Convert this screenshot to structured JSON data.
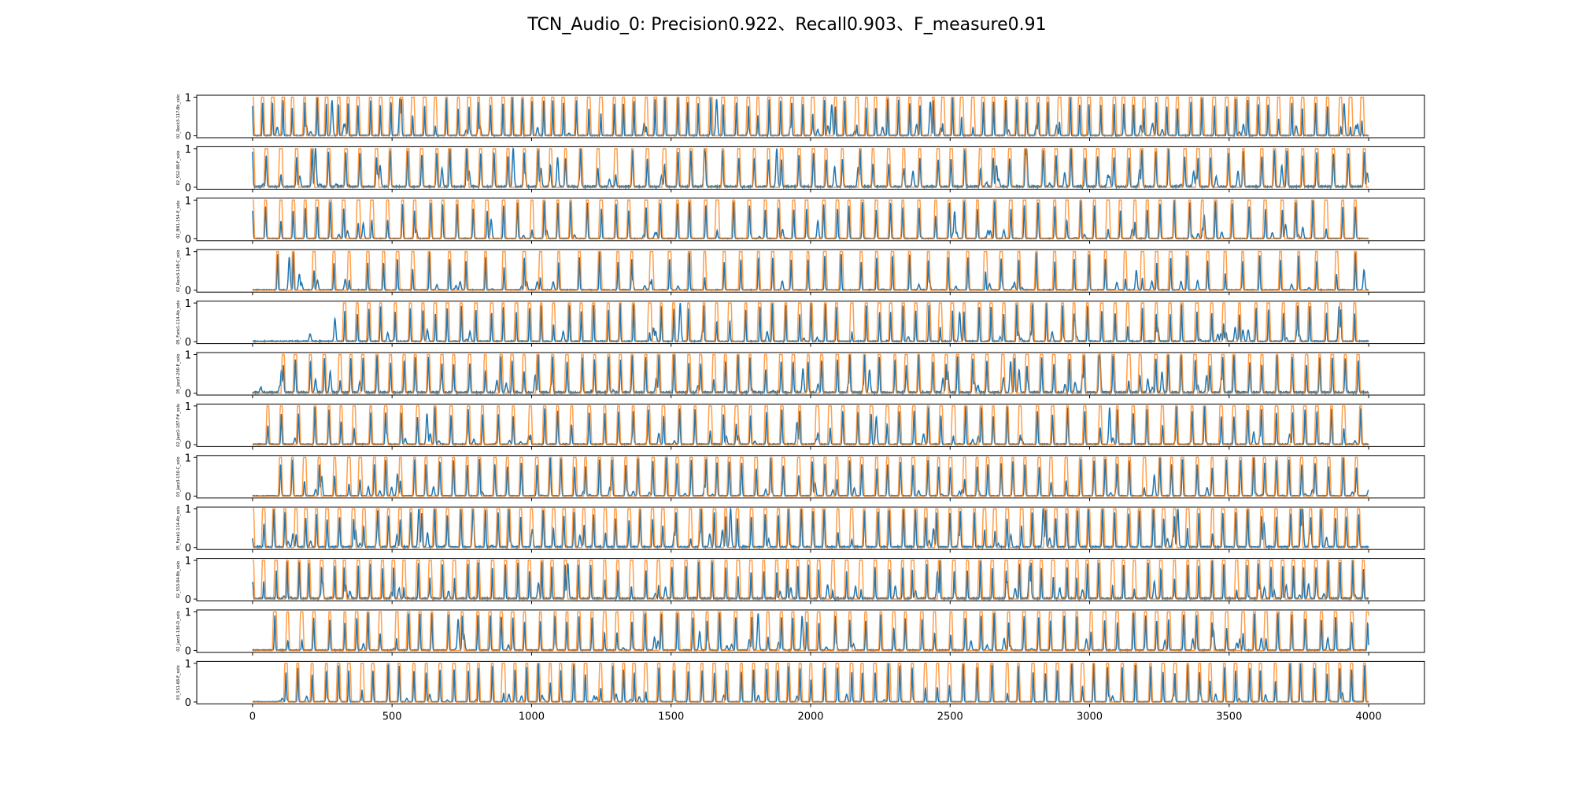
{
  "chart_data": {
    "type": "line",
    "title": "TCN_Audio_0: Precision0.922、Recall0.903、F_measure0.91",
    "x_range": [
      0,
      4000
    ],
    "xlim": [
      -200,
      4200
    ],
    "ylim": [
      -0.05,
      1.05
    ],
    "xticks": [
      0,
      500,
      1000,
      1500,
      2000,
      2500,
      3000,
      3500,
      4000
    ],
    "xtick_labels": [
      "0",
      "500",
      "1000",
      "1500",
      "2000",
      "2500",
      "3000",
      "3500",
      "4000"
    ],
    "yticks": [
      0,
      1
    ],
    "ytick_labels": [
      "0",
      "1"
    ],
    "grid": false,
    "legend": "none",
    "series_colors": {
      "prediction": "#1f77b4",
      "target": "#ff7f0e"
    },
    "panels": [
      {
        "ylabel": "02_Rock3-117-Bb_solo",
        "first_beat": 0,
        "period": 40,
        "spread": 1.6,
        "noise": 0.08,
        "seed": 11
      },
      {
        "ylabel": "02_SS2-88-F_solo",
        "first_beat": 0,
        "period": 55,
        "spread": 2.2,
        "noise": 0.14,
        "seed": 23
      },
      {
        "ylabel": "02_BN1-154-E_solo",
        "first_beat": 0,
        "period": 52,
        "spread": 2.0,
        "noise": 0.06,
        "seed": 37
      },
      {
        "ylabel": "02_Rock3-148-C_solo",
        "first_beat": 90,
        "period": 62,
        "spread": 1.8,
        "noise": 0.07,
        "seed": 41
      },
      {
        "ylabel": "05_Funk1-114-Ab_solo",
        "first_beat": 330,
        "period": 50,
        "spread": 1.7,
        "noise": 0.09,
        "seed": 53
      },
      {
        "ylabel": "05_Jazz3-200-E_solo",
        "first_beat": 110,
        "period": 48,
        "spread": 2.0,
        "noise": 0.15,
        "seed": 61
      },
      {
        "ylabel": "02_Jazz2-187-F#_solo",
        "first_beat": 55,
        "period": 53,
        "spread": 2.0,
        "noise": 0.08,
        "seed": 73
      },
      {
        "ylabel": "03_Jazz3-150-C_solo",
        "first_beat": 100,
        "period": 47,
        "spread": 2.1,
        "noise": 0.06,
        "seed": 89
      },
      {
        "ylabel": "05_Funk1-114-Ab_solo",
        "first_beat": 0,
        "period": 44,
        "spread": 2.0,
        "noise": 0.12,
        "seed": 97
      },
      {
        "ylabel": "02_SS3-84-Bb_solo",
        "first_beat": 0,
        "period": 43,
        "spread": 1.6,
        "noise": 0.12,
        "seed": 103
      },
      {
        "ylabel": "02_Jazz1-130-D_solo",
        "first_beat": 80,
        "period": 50,
        "spread": 1.9,
        "noise": 0.08,
        "seed": 113
      },
      {
        "ylabel": "03_SS1-68-E_solo",
        "first_beat": 120,
        "period": 46,
        "spread": 1.8,
        "noise": 0.05,
        "seed": 127
      }
    ]
  }
}
